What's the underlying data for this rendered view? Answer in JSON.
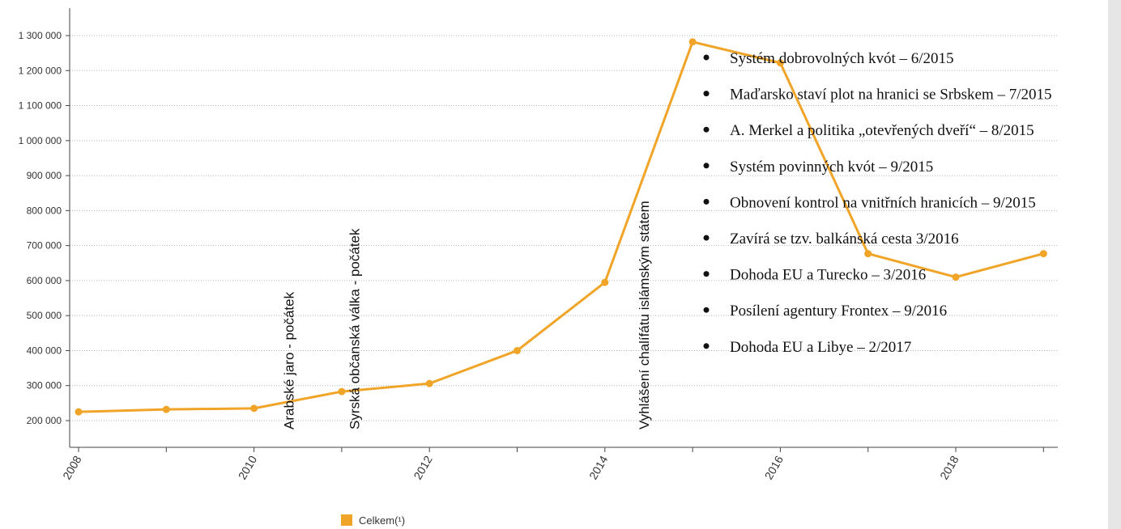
{
  "chart_data": {
    "type": "line",
    "x": [
      2008,
      2009,
      2010,
      2011,
      2012,
      2013,
      2014,
      2015,
      2016,
      2017,
      2018,
      2019
    ],
    "x_tick_labels": [
      "2008",
      "2010",
      "2012",
      "2014",
      "2016",
      "2018"
    ],
    "series": [
      {
        "name": "Celkem(¹)",
        "color": "#f0a428",
        "values": [
          225000,
          232000,
          235000,
          283000,
          306000,
          400000,
          595000,
          1282000,
          1222000,
          677000,
          610000,
          677000
        ]
      }
    ],
    "ylim": [
      200000,
      1300000
    ],
    "y_tick_labels": [
      "200 000",
      "300 000",
      "400 000",
      "500 000",
      "600 000",
      "700 000",
      "800 000",
      "900 000",
      "1 000 000",
      "1 100 000",
      "1 200 000",
      "1 300 000"
    ],
    "grid": "horizontal dotted",
    "legend_position": "bottom",
    "event_annotations": [
      {
        "text": "Arabské jaro - počátek",
        "x": 2010.45
      },
      {
        "text": "Syrská občanská válka - počátek",
        "x": 2011.2
      },
      {
        "text": "Vyhlášení chalífátu islámským státem",
        "x": 2014.5
      }
    ],
    "bullet_list": [
      "Systém dobrovolných kvót – 6/2015",
      "Maďarsko staví plot na hranici se Srbskem – 7/2015",
      "A. Merkel a politika „otevřených dveří“ – 8/2015",
      "Systém povinných kvót – 9/2015",
      "Obnovení kontrol na vnitřních hranicích – 9/2015",
      "Zavírá se tzv. balkánská cesta 3/2016",
      "Dohoda EU a Turecko – 3/2016",
      "Posílení agentury Frontex – 9/2016",
      "Dohoda EU a Libye – 2/2017"
    ]
  }
}
